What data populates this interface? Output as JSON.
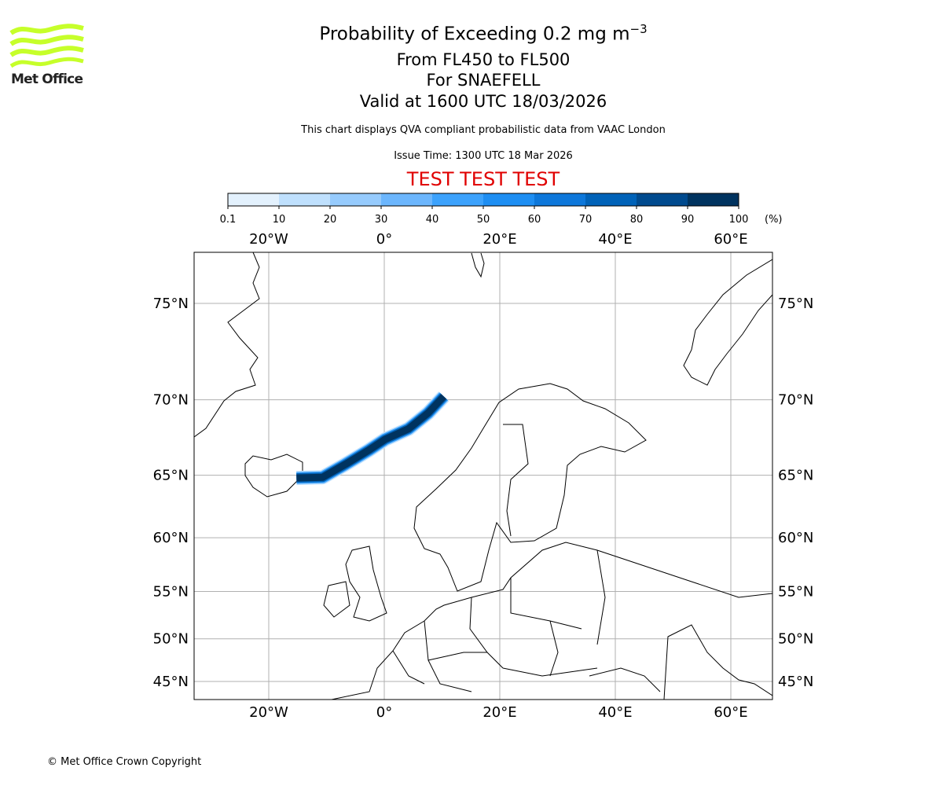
{
  "header": {
    "title_main": "Probability of Exceeding 0.2 mg m",
    "title_exp": "−3",
    "levels": "From FL450 to FL500",
    "volcano": "For SNAEFELL",
    "valid": "Valid at 1600 UTC 18/03/2026",
    "note": "This chart displays QVA compliant probabilistic data from VAAC London",
    "issue": "Issue Time: 1300 UTC 18 Mar 2026",
    "test_banner": "TEST TEST TEST"
  },
  "logo": {
    "text": "Met Office",
    "color": "#c6ff2a"
  },
  "footer": {
    "copyright": "© Met Office Crown Copyright"
  },
  "chart_data": {
    "type": "heatmap",
    "projection": "mercator",
    "lon_range": [
      -33,
      67
    ],
    "lat_range": [
      43.5,
      78.5
    ],
    "lon_ticks": [
      {
        "v": -20,
        "label": "20°W"
      },
      {
        "v": 0,
        "label": "0°"
      },
      {
        "v": 20,
        "label": "20°E"
      },
      {
        "v": 40,
        "label": "40°E"
      },
      {
        "v": 60,
        "label": "60°E"
      }
    ],
    "lat_ticks": [
      {
        "v": 75,
        "label": "75°N"
      },
      {
        "v": 70,
        "label": "70°N"
      },
      {
        "v": 65,
        "label": "65°N"
      },
      {
        "v": 60,
        "label": "60°N"
      },
      {
        "v": 55,
        "label": "55°N"
      },
      {
        "v": 50,
        "label": "50°N"
      },
      {
        "v": 45,
        "label": "45°N"
      }
    ],
    "grid": true,
    "colorbar": {
      "unit": "(%)",
      "bounds": [
        "0.1",
        "10",
        "20",
        "30",
        "40",
        "50",
        "60",
        "70",
        "80",
        "90",
        "100"
      ],
      "colors": [
        "#e3f1fd",
        "#bfe0fd",
        "#96cbfd",
        "#6cb6fd",
        "#3ca2fc",
        "#1e8ef2",
        "#0d77da",
        "#0062b8",
        "#004a8e",
        "#00335f"
      ]
    },
    "plume": {
      "probability_core": 100,
      "path": [
        [
          -15.2,
          64.8
        ],
        [
          -10.7,
          64.85
        ],
        [
          -6.7,
          65.8
        ],
        [
          -2.6,
          66.8
        ],
        [
          0.1,
          67.5
        ],
        [
          4.2,
          68.2
        ],
        [
          7.6,
          69.2
        ],
        [
          10.3,
          70.2
        ]
      ]
    }
  }
}
